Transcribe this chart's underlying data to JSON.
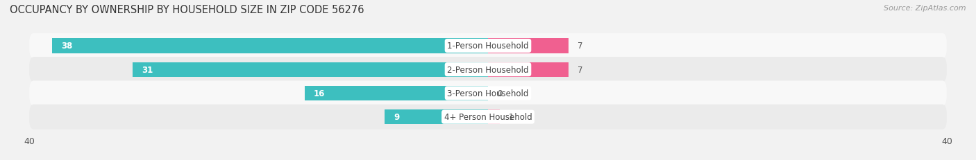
{
  "title": "OCCUPANCY BY OWNERSHIP BY HOUSEHOLD SIZE IN ZIP CODE 56276",
  "source": "Source: ZipAtlas.com",
  "categories": [
    "1-Person Household",
    "2-Person Household",
    "3-Person Household",
    "4+ Person Household"
  ],
  "owner_values": [
    38,
    31,
    16,
    9
  ],
  "renter_values": [
    7,
    7,
    0,
    1
  ],
  "owner_color": "#3DBFBF",
  "renter_color": "#F06090",
  "renter_color_light": "#F8A0B8",
  "label_bg_color": "#FFFFFF",
  "x_max": 40,
  "title_fontsize": 10.5,
  "source_fontsize": 8,
  "tick_fontsize": 9,
  "label_fontsize": 8.5,
  "value_fontsize": 8.5,
  "legend_fontsize": 8.5,
  "background_color": "#F2F2F2",
  "row_color_odd": "#EBEBEB",
  "row_color_even": "#F8F8F8"
}
